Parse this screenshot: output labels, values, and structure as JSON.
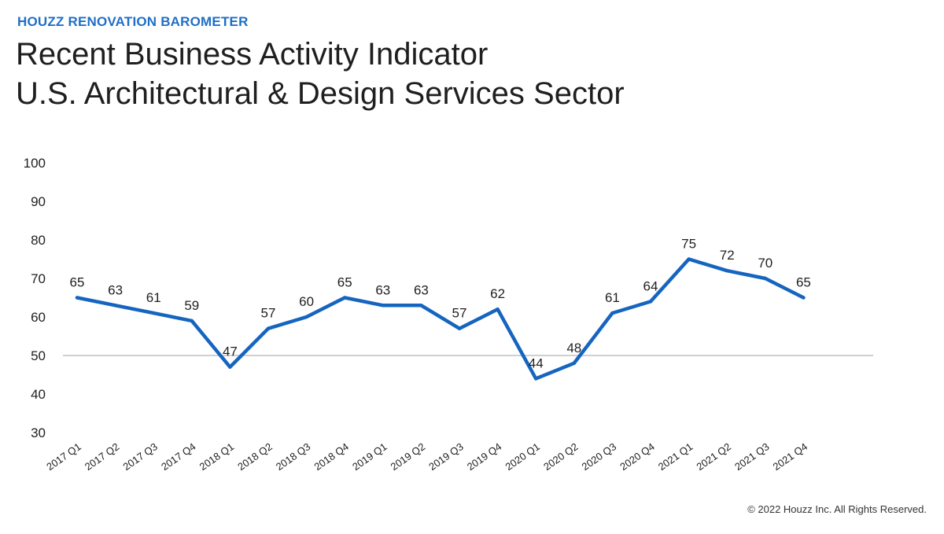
{
  "header": {
    "kicker": "HOUZZ RENOVATION BAROMETER",
    "title_line1": "Recent Business Activity Indicator",
    "title_line2": "U.S. Architectural & Design Services Sector"
  },
  "footer": {
    "copyright": "© 2022 Houzz Inc. All Rights Reserved."
  },
  "colors": {
    "accent": "#1f6fc5",
    "line": "#1565c0",
    "text": "#1f1f1f",
    "reference_line": "#a0a0a0"
  },
  "chart_data": {
    "type": "line",
    "title": "",
    "xlabel": "",
    "ylabel": "",
    "ylim": [
      30,
      100
    ],
    "yticks": [
      30,
      40,
      50,
      60,
      70,
      80,
      90,
      100
    ],
    "grid": false,
    "reference_line": 50,
    "categories": [
      "2017 Q1",
      "2017 Q2",
      "2017 Q3",
      "2017 Q4",
      "2018 Q1",
      "2018 Q2",
      "2018 Q3",
      "2018 Q4",
      "2019 Q1",
      "2019 Q2",
      "2019 Q3",
      "2019 Q4",
      "2020 Q1",
      "2020 Q2",
      "2020 Q3",
      "2020 Q4",
      "2021 Q1",
      "2021 Q2",
      "2021 Q3",
      "2021 Q4"
    ],
    "series": [
      {
        "values": [
          65,
          63,
          61,
          59,
          47,
          57,
          60,
          65,
          63,
          63,
          57,
          62,
          44,
          48,
          61,
          64,
          75,
          72,
          70,
          65
        ],
        "labels": [
          "65",
          "63",
          "61",
          "59",
          "47",
          "57",
          "60",
          "65",
          "63",
          "63",
          "57",
          "62",
          "44",
          "48",
          "61",
          "64",
          "75",
          "72",
          "70",
          "65"
        ]
      }
    ]
  }
}
